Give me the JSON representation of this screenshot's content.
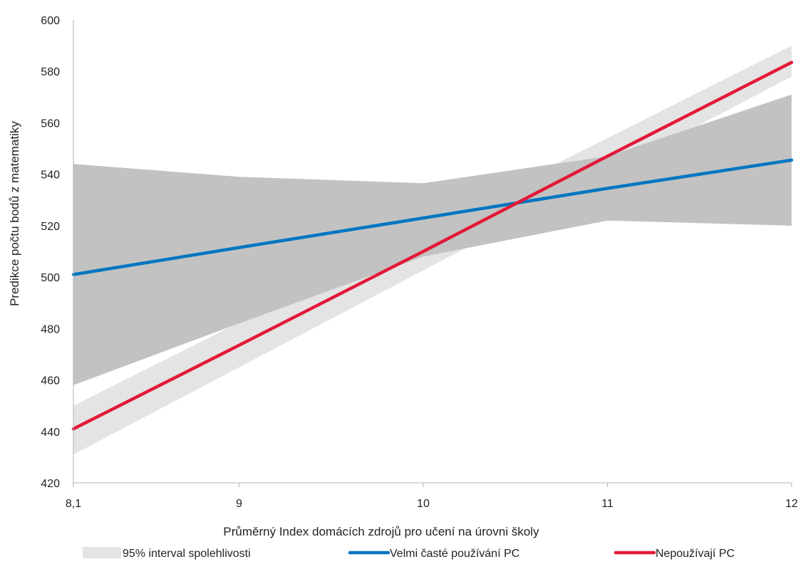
{
  "chart_data": {
    "type": "line",
    "xlabel": "Průměrný Index domácích zdrojů pro učení na úrovni školy",
    "ylabel": "Predikce počtu bodů z matematiky",
    "xlim": [
      8.1,
      12
    ],
    "ylim": [
      420,
      600
    ],
    "x_ticks": [
      8.1,
      9,
      10,
      11,
      12
    ],
    "x_tick_labels": [
      "8,1",
      "9",
      "10",
      "11",
      "12"
    ],
    "y_ticks": [
      420,
      440,
      460,
      480,
      500,
      520,
      540,
      560,
      580,
      600
    ],
    "y_tick_labels": [
      "420",
      "440",
      "460",
      "480",
      "500",
      "520",
      "540",
      "560",
      "580",
      "600"
    ],
    "grid": false,
    "legend_position": "bottom",
    "series": [
      {
        "name": "Velmi časté používání PC",
        "color": "#0076c0",
        "x": [
          8.1,
          9,
          10,
          11,
          12
        ],
        "y": [
          501,
          511.5,
          523,
          534.5,
          545.5
        ],
        "ci_color": "#c3c2c2",
        "ci": {
          "x": [
            8.1,
            9,
            10,
            11,
            12
          ],
          "upper": [
            544,
            539,
            536.5,
            547,
            571
          ],
          "lower": [
            458,
            482,
            508,
            522,
            520
          ]
        }
      },
      {
        "name": "Nepoužívají PC",
        "color": "#e31937",
        "x": [
          8.1,
          9,
          10,
          11,
          12
        ],
        "y": [
          441,
          473.5,
          510,
          547,
          583.5
        ],
        "ci_color": "#e4e4e4",
        "ci": {
          "x": [
            8.1,
            12
          ],
          "upper": [
            450,
            590
          ],
          "lower": [
            431,
            578
          ]
        }
      }
    ],
    "legend": [
      {
        "label": "95% interval spolehlivosti",
        "kind": "band",
        "color": "#e4e4e4"
      },
      {
        "label": "Velmi časté používání PC",
        "kind": "line",
        "color": "#0076c0"
      },
      {
        "label": "Nepoužívají PC",
        "kind": "line",
        "color": "#e31937"
      }
    ],
    "axis_color": "#b3b3b3"
  }
}
